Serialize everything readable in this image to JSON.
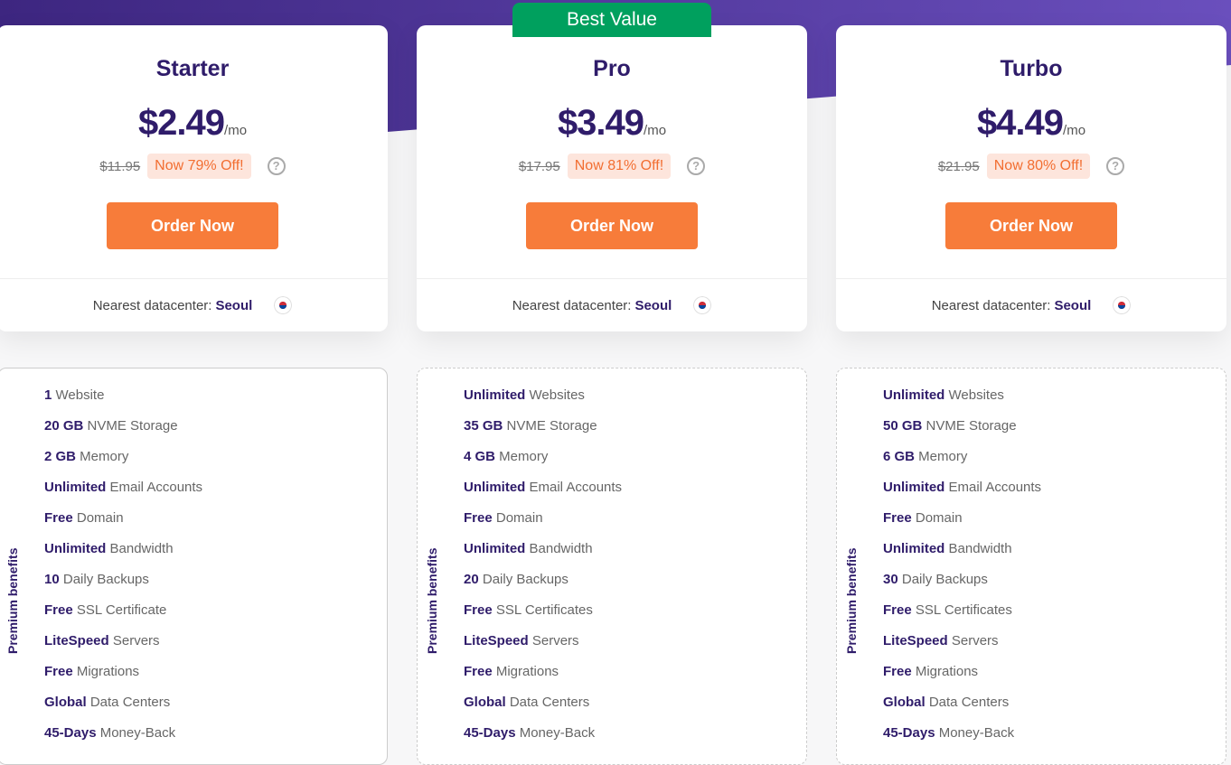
{
  "badge": "Best Value",
  "colors": {
    "accent": "#f77c3a",
    "brand": "#2f1c6a",
    "badge": "#00a05e"
  },
  "plans": [
    {
      "name": "Starter",
      "price": "$2.49",
      "per": "/mo",
      "old": "$11.95",
      "off": "Now 79% Off!",
      "order": "Order Now",
      "dc_label": "Nearest datacenter:",
      "dc_city": "Seoul",
      "features": [
        [
          "1",
          " Website"
        ],
        [
          "20 GB",
          " NVME Storage"
        ],
        [
          "2 GB",
          " Memory"
        ],
        [
          "Unlimited",
          " Email Accounts"
        ],
        [
          "Free",
          " Domain"
        ],
        [
          "Unlimited",
          " Bandwidth"
        ],
        [
          "10",
          " Daily Backups"
        ],
        [
          "Free",
          " SSL Certificate"
        ],
        [
          "LiteSpeed",
          " Servers"
        ],
        [
          "Free",
          " Migrations"
        ],
        [
          "Global",
          " Data Centers"
        ],
        [
          "45-Days",
          " Money-Back"
        ]
      ]
    },
    {
      "name": "Pro",
      "price": "$3.49",
      "per": "/mo",
      "old": "$17.95",
      "off": "Now 81% Off!",
      "order": "Order Now",
      "dc_label": "Nearest datacenter:",
      "dc_city": "Seoul",
      "features": [
        [
          "Unlimited",
          " Websites"
        ],
        [
          "35 GB",
          " NVME Storage"
        ],
        [
          "4 GB",
          " Memory"
        ],
        [
          "Unlimited",
          " Email Accounts"
        ],
        [
          "Free",
          " Domain"
        ],
        [
          "Unlimited",
          " Bandwidth"
        ],
        [
          "20",
          " Daily Backups"
        ],
        [
          "Free",
          " SSL Certificates"
        ],
        [
          "LiteSpeed",
          " Servers"
        ],
        [
          "Free",
          " Migrations"
        ],
        [
          "Global",
          " Data Centers"
        ],
        [
          "45-Days",
          " Money-Back"
        ]
      ]
    },
    {
      "name": "Turbo",
      "price": "$4.49",
      "per": "/mo",
      "old": "$21.95",
      "off": "Now 80% Off!",
      "order": "Order Now",
      "dc_label": "Nearest datacenter:",
      "dc_city": "Seoul",
      "features": [
        [
          "Unlimited",
          " Websites"
        ],
        [
          "50 GB",
          " NVME Storage"
        ],
        [
          "6 GB",
          " Memory"
        ],
        [
          "Unlimited",
          " Email Accounts"
        ],
        [
          "Free",
          " Domain"
        ],
        [
          "Unlimited",
          " Bandwidth"
        ],
        [
          "30",
          " Daily Backups"
        ],
        [
          "Free",
          " SSL Certificates"
        ],
        [
          "LiteSpeed",
          " Servers"
        ],
        [
          "Free",
          " Migrations"
        ],
        [
          "Global",
          " Data Centers"
        ],
        [
          "45-Days",
          " Money-Back"
        ]
      ]
    }
  ],
  "benefits_label": "Premium benefits"
}
